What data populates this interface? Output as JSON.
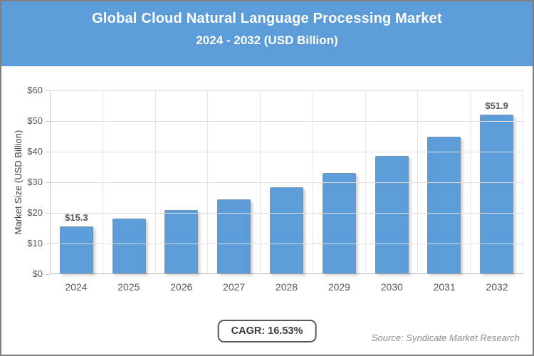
{
  "header": {
    "title": "Global Cloud Natural Language Processing Market",
    "subtitle": "2024 - 2032 (USD Billion)"
  },
  "chart_data": {
    "type": "bar",
    "title": "Global Cloud Natural Language Processing Market",
    "subtitle": "2024 - 2032 (USD Billion)",
    "categories": [
      "2024",
      "2025",
      "2026",
      "2027",
      "2028",
      "2029",
      "2030",
      "2031",
      "2032"
    ],
    "values": [
      15.3,
      17.8,
      20.8,
      24.2,
      28.2,
      32.9,
      38.3,
      44.6,
      51.9
    ],
    "bar_labels": [
      "$15.3",
      "",
      "",
      "",
      "",
      "",
      "",
      "",
      "$51.9"
    ],
    "xlabel": "",
    "ylabel": "Market Size (USD Billion)",
    "ylim": [
      0,
      60
    ],
    "ytick_labels": [
      "$0",
      "$10",
      "$20",
      "$30",
      "$40",
      "$50",
      "$60"
    ],
    "grid": true,
    "legend": "none",
    "bar_color": "#5c9cd9"
  },
  "footer": {
    "cagr_label": "CAGR: 16.53%",
    "source": "Source: Syndicate Market Research"
  },
  "colors": {
    "header_bg": "#5c9cd9",
    "bar": "#5c9cd9",
    "gridline": "#dedede",
    "axis_text": "#595959",
    "outer_border": "#7f7f7f"
  }
}
